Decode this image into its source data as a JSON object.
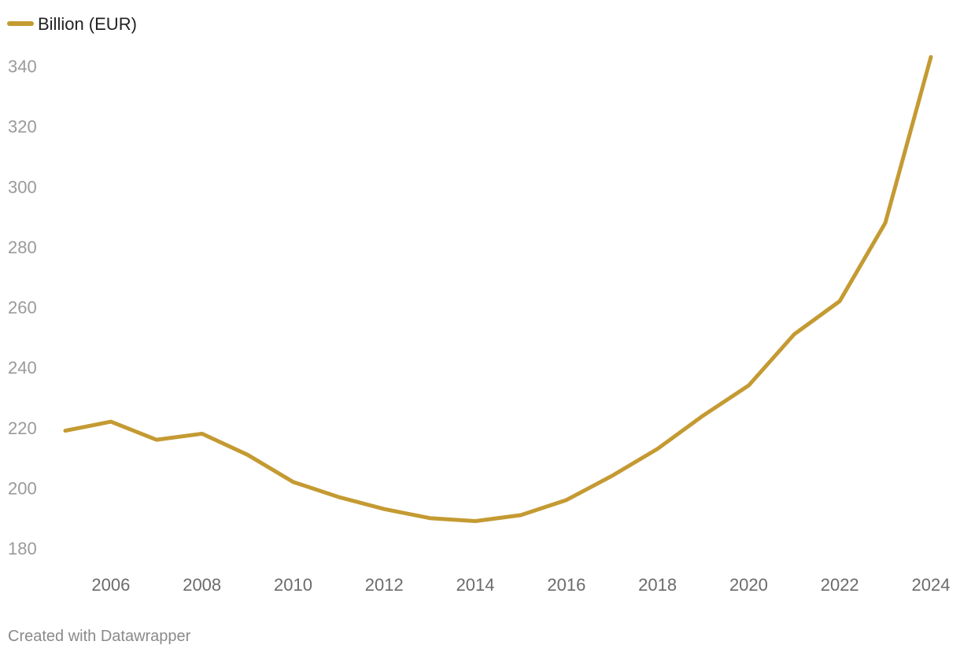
{
  "chart_data": {
    "type": "line",
    "x": [
      2005,
      2006,
      2007,
      2008,
      2009,
      2010,
      2011,
      2012,
      2013,
      2014,
      2015,
      2016,
      2017,
      2018,
      2019,
      2020,
      2021,
      2022,
      2023,
      2024
    ],
    "series": [
      {
        "name": "Billion (EUR)",
        "color": "#c49a32",
        "values": [
          219,
          222,
          216,
          218,
          211,
          202,
          197,
          193,
          190,
          189,
          191,
          196,
          204,
          213,
          224,
          234,
          251,
          262,
          288,
          343
        ]
      }
    ],
    "y_ticks": [
      180,
      200,
      220,
      240,
      260,
      280,
      300,
      320,
      340
    ],
    "x_ticks": [
      2006,
      2008,
      2010,
      2012,
      2014,
      2016,
      2018,
      2020,
      2022,
      2024
    ],
    "ylim": [
      180,
      340
    ],
    "xlim": [
      2005,
      2024
    ],
    "grid": false,
    "legend_position": "top-left",
    "credit": "Created with Datawrapper"
  }
}
